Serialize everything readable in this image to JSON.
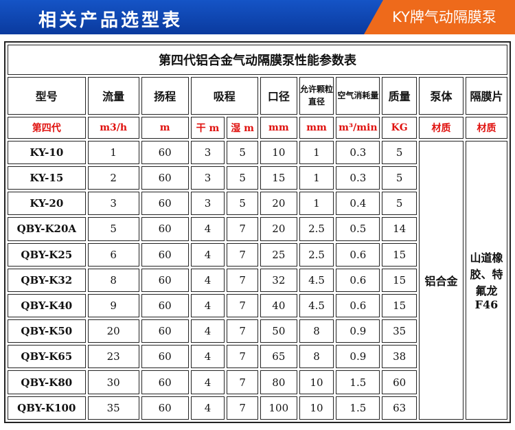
{
  "header": {
    "title": "相关产品选型表",
    "brand": "KY牌气动隔膜泵"
  },
  "table": {
    "title": "第四代铝合金气动隔膜泵性能参数表",
    "columns": [
      "型号",
      "流量",
      "扬程",
      "吸程",
      "口径",
      "允许颗粒直径",
      "空气消耗量",
      "质量",
      "泵体",
      "隔膜片"
    ],
    "units": [
      "第四代",
      "m3/h",
      "m",
      "干 m",
      "湿 m",
      "mm",
      "mm",
      "m³/min",
      "KG",
      "材质",
      "材质"
    ],
    "rows": [
      [
        "KY-10",
        1,
        60,
        3,
        5,
        10,
        1,
        0.3,
        5
      ],
      [
        "KY-15",
        2,
        60,
        3,
        5,
        15,
        1,
        0.3,
        5
      ],
      [
        "KY-20",
        3,
        60,
        3,
        5,
        20,
        1,
        0.4,
        5
      ],
      [
        "QBY-K20A",
        5,
        60,
        4,
        7,
        20,
        2.5,
        0.5,
        14
      ],
      [
        "QBY-K25",
        6,
        60,
        4,
        7,
        25,
        2.5,
        0.6,
        15
      ],
      [
        "QBY-K32",
        8,
        60,
        4,
        7,
        32,
        4.5,
        0.6,
        15
      ],
      [
        "QBY-K40",
        9,
        60,
        4,
        7,
        40,
        4.5,
        0.6,
        15
      ],
      [
        "QBY-K50",
        20,
        60,
        4,
        7,
        50,
        8,
        0.9,
        35
      ],
      [
        "QBY-K65",
        23,
        60,
        4,
        7,
        65,
        8,
        0.9,
        38
      ],
      [
        "QBY-K80",
        30,
        60,
        4,
        7,
        80,
        10,
        1.5,
        60
      ],
      [
        "QBY-K100",
        35,
        60,
        4,
        7,
        100,
        10,
        1.5,
        63
      ]
    ],
    "pump_body": "铝合金",
    "diaphragm": "山道橡胶、特氟龙F46"
  }
}
